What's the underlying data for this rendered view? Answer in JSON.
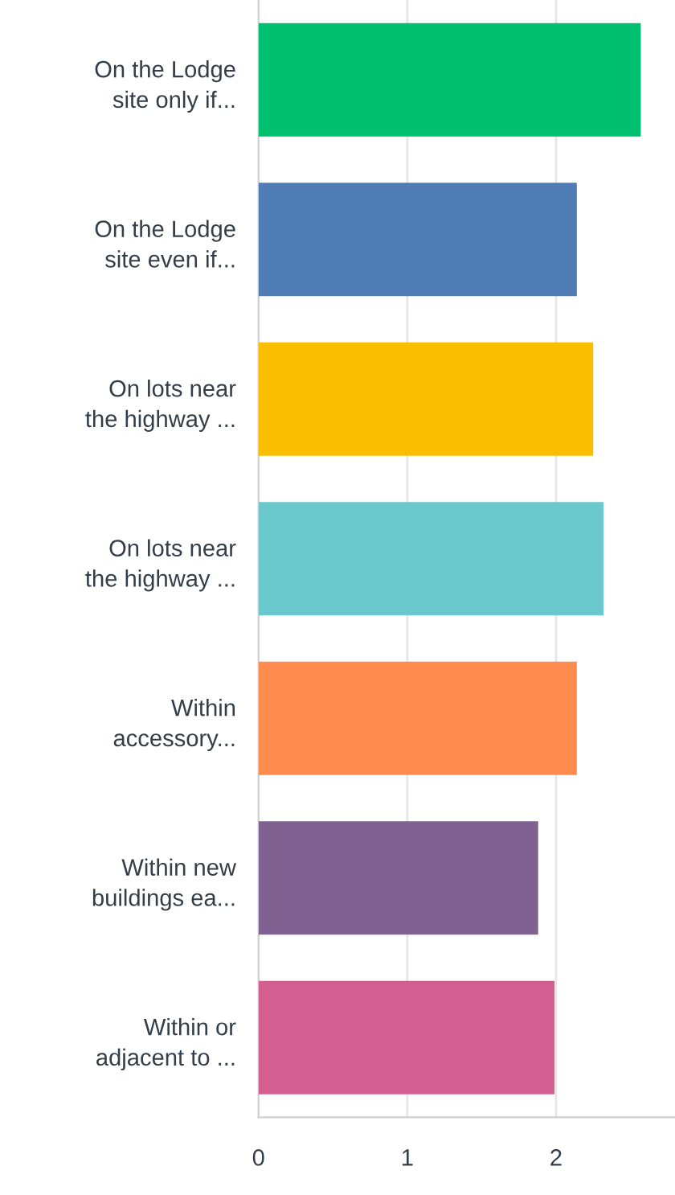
{
  "chart_data": {
    "type": "bar",
    "orientation": "horizontal",
    "categories": [
      "On the Lodge\nsite only if...",
      "On the Lodge\nsite even if...",
      "On lots near\nthe highway ...",
      "On lots near\nthe highway ...",
      "Within\naccessory...",
      "Within new\nbuildings ea...",
      "Within or\nadjacent to ..."
    ],
    "values": [
      2.57,
      2.14,
      2.25,
      2.32,
      2.14,
      1.88,
      1.99
    ],
    "colors": [
      "#00bf6f",
      "#507cb6",
      "#f9be00",
      "#6bc8cd",
      "#ff8b4f",
      "#7f6192",
      "#d25f90"
    ],
    "xlim": [
      0,
      2.8
    ],
    "xticks": [
      0,
      1,
      2
    ],
    "grid": "x"
  }
}
